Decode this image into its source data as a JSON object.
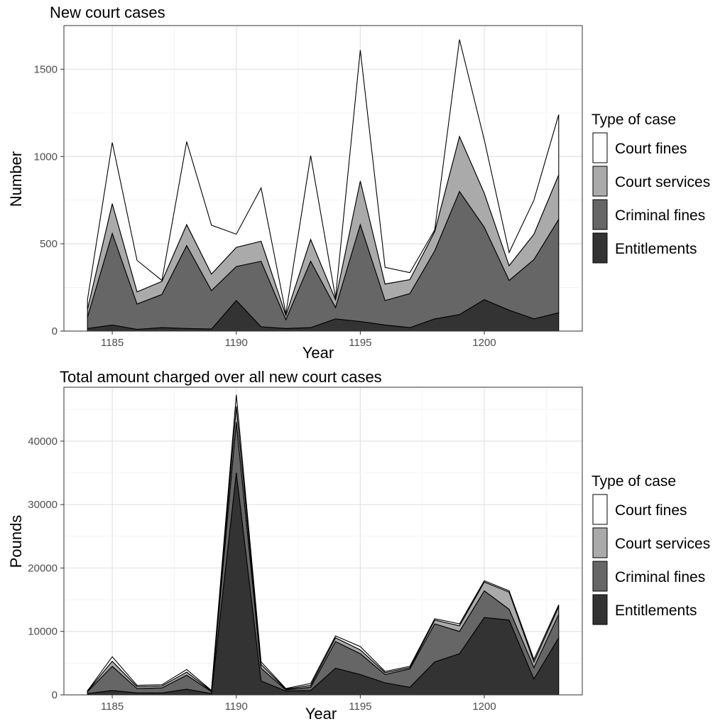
{
  "chart_data": [
    {
      "type": "area",
      "stacked": true,
      "title": "New court cases",
      "xlabel": "Year",
      "ylabel": "Number",
      "xlim": [
        1184,
        1203
      ],
      "ylim": [
        0,
        1750
      ],
      "xticks": [
        1185,
        1190,
        1195,
        1200
      ],
      "yticks": [
        0,
        500,
        1000,
        1500
      ],
      "grid": true,
      "legend": {
        "title": "Type of case",
        "position": "right"
      },
      "x": [
        1184,
        1185,
        1186,
        1187,
        1188,
        1189,
        1190,
        1191,
        1192,
        1193,
        1194,
        1195,
        1196,
        1197,
        1198,
        1199,
        1200,
        1201,
        1202,
        1203
      ],
      "series": [
        {
          "name": "Entitlements",
          "color": "#333333",
          "values": [
            15,
            35,
            10,
            20,
            15,
            12,
            175,
            25,
            15,
            20,
            70,
            55,
            35,
            20,
            70,
            95,
            180,
            120,
            70,
            105
          ]
        },
        {
          "name": "Criminal fines",
          "color": "#666666",
          "values": [
            65,
            525,
            145,
            190,
            475,
            220,
            195,
            375,
            50,
            380,
            65,
            555,
            140,
            195,
            390,
            705,
            415,
            170,
            340,
            535
          ]
        },
        {
          "name": "Court services",
          "color": "#aaaaaa",
          "values": [
            45,
            170,
            70,
            75,
            120,
            95,
            110,
            115,
            25,
            125,
            45,
            250,
            95,
            80,
            110,
            315,
            195,
            85,
            145,
            255
          ]
        },
        {
          "name": "Court fines",
          "color": "#ffffff",
          "values": [
            55,
            350,
            180,
            5,
            475,
            280,
            75,
            305,
            10,
            480,
            10,
            750,
            95,
            40,
            10,
            555,
            305,
            75,
            195,
            345
          ]
        }
      ]
    },
    {
      "type": "area",
      "stacked": true,
      "title": "Total amount charged over all new court cases",
      "xlabel": "Year",
      "ylabel": "Pounds",
      "xlim": [
        1184,
        1203
      ],
      "ylim": [
        0,
        48500
      ],
      "xticks": [
        1185,
        1190,
        1195,
        1200
      ],
      "yticks": [
        0,
        10000,
        20000,
        30000,
        40000
      ],
      "grid": true,
      "legend": {
        "title": "Type of case",
        "position": "right"
      },
      "x": [
        1184,
        1185,
        1186,
        1187,
        1188,
        1189,
        1190,
        1191,
        1192,
        1193,
        1194,
        1195,
        1196,
        1197,
        1198,
        1199,
        1200,
        1201,
        1202,
        1203
      ],
      "series": [
        {
          "name": "Entitlements",
          "color": "#333333",
          "values": [
            200,
            700,
            300,
            300,
            900,
            200,
            35000,
            2200,
            600,
            700,
            4200,
            3200,
            1900,
            1200,
            5200,
            6500,
            12200,
            11800,
            2500,
            9000
          ]
        },
        {
          "name": "Criminal fines",
          "color": "#666666",
          "values": [
            300,
            3800,
            700,
            800,
            2200,
            300,
            8000,
            2000,
            200,
            500,
            4200,
            3300,
            1300,
            2900,
            6000,
            3500,
            4200,
            1700,
            1800,
            3700
          ]
        },
        {
          "name": "Court services",
          "color": "#aaaaaa",
          "values": [
            100,
            800,
            300,
            300,
            500,
            100,
            2500,
            600,
            100,
            300,
            600,
            600,
            300,
            200,
            600,
            900,
            1400,
            2700,
            900,
            1200
          ]
        },
        {
          "name": "Court fines",
          "color": "#ffffff",
          "values": [
            50,
            700,
            200,
            200,
            400,
            100,
            1800,
            400,
            100,
            300,
            300,
            500,
            200,
            200,
            200,
            300,
            200,
            200,
            400,
            300
          ]
        }
      ]
    }
  ]
}
